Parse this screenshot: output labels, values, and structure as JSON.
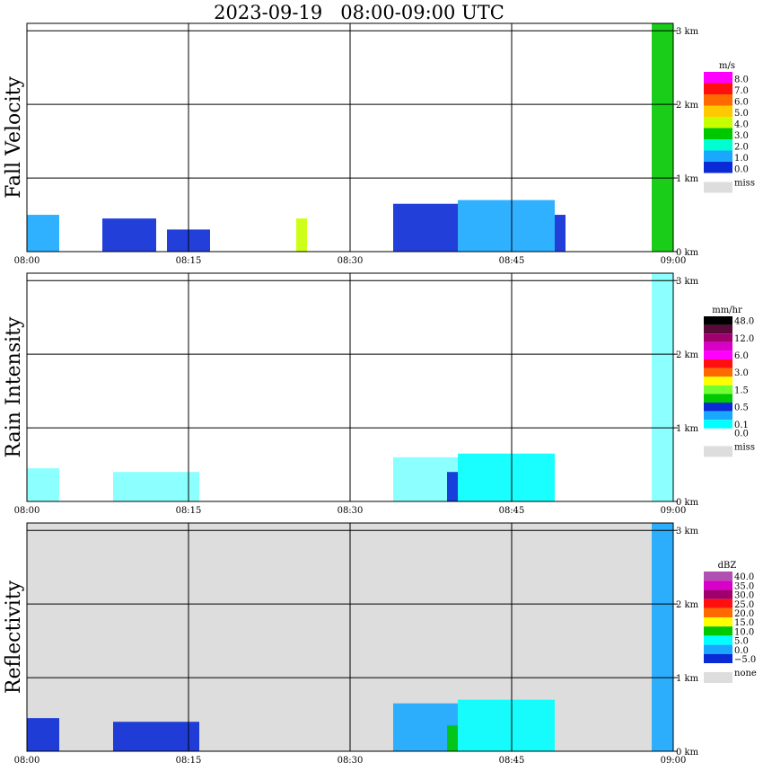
{
  "title": "2023-09-19   08:00-09:00 UTC",
  "time_ticks": [
    "08:00",
    "08:15",
    "08:30",
    "08:45",
    "09:00"
  ],
  "height_ticks": [
    "0 km",
    "1 km",
    "2 km",
    "3 km"
  ],
  "chart_data": [
    {
      "type": "heatmap",
      "title": "Fall Velocity",
      "ylabel": "Fall Velocity",
      "xlim": [
        "08:00",
        "09:00"
      ],
      "ylim_km": [
        0,
        3.1
      ],
      "background": "#ffffff",
      "colorbar": {
        "unit": "m/s",
        "levels": [
          "8.0",
          "7.0",
          "6.0",
          "5.0",
          "4.0",
          "3.0",
          "2.0",
          "1.0",
          "0.0"
        ],
        "colors": [
          "#ff00ff",
          "#ff1010",
          "#ff6a00",
          "#ffc800",
          "#c8ff00",
          "#00c800",
          "#00ffd0",
          "#1aa8ff",
          "#0a2ad6"
        ],
        "missing_label": "miss",
        "missing_color": "#dddddd"
      },
      "echoes": [
        {
          "start": "08:00",
          "end": "08:03",
          "top_km": 0.5,
          "color": "#1aa8ff"
        },
        {
          "start": "08:07",
          "end": "08:12",
          "top_km": 0.45,
          "color": "#0a2ad6"
        },
        {
          "start": "08:13",
          "end": "08:17",
          "top_km": 0.3,
          "color": "#0a2ad6"
        },
        {
          "start": "08:25",
          "end": "08:26",
          "top_km": 0.45,
          "color": "#c8ff00"
        },
        {
          "start": "08:34",
          "end": "08:40",
          "top_km": 0.65,
          "color": "#0a2ad6"
        },
        {
          "start": "08:40",
          "end": "08:49",
          "top_km": 0.7,
          "color": "#1aa8ff"
        },
        {
          "start": "08:49",
          "end": "08:50",
          "top_km": 0.5,
          "color": "#0a2ad6"
        },
        {
          "start": "08:58",
          "end": "09:00",
          "top_km": 3.1,
          "color": "#00c800"
        }
      ]
    },
    {
      "type": "heatmap",
      "title": "Rain Intensity",
      "ylabel": "Rain Intensity",
      "xlim": [
        "08:00",
        "09:00"
      ],
      "ylim_km": [
        0,
        3.1
      ],
      "background": "#ffffff",
      "colorbar": {
        "unit": "mm/hr",
        "levels": [
          "48.0",
          "",
          "12.0",
          "",
          "6.0",
          "",
          "3.0",
          "",
          "1.5",
          "",
          "0.5",
          "",
          "0.1",
          "0.0"
        ],
        "colors": [
          "#000000",
          "#5a0a3a",
          "#a0006e",
          "#d800c8",
          "#ff00ff",
          "#ff1010",
          "#ff6a00",
          "#ffff00",
          "#70ff30",
          "#00c800",
          "#0a2ad6",
          "#1aa8ff",
          "#00ffff",
          "#ffffff"
        ],
        "missing_label": "miss",
        "missing_color": "#dddddd"
      },
      "echoes": [
        {
          "start": "08:00",
          "end": "08:03",
          "top_km": 0.45,
          "color": "#80ffff"
        },
        {
          "start": "08:08",
          "end": "08:16",
          "top_km": 0.4,
          "color": "#80ffff"
        },
        {
          "start": "08:34",
          "end": "08:40",
          "top_km": 0.6,
          "color": "#80ffff"
        },
        {
          "start": "08:39",
          "end": "08:40",
          "top_km": 0.4,
          "color": "#0a2ad6"
        },
        {
          "start": "08:40",
          "end": "08:49",
          "top_km": 0.65,
          "color": "#00ffff"
        },
        {
          "start": "08:58",
          "end": "09:00",
          "top_km": 3.1,
          "color": "#80ffff"
        }
      ]
    },
    {
      "type": "heatmap",
      "title": "Reflectivity",
      "ylabel": "Reflectivity",
      "xlim": [
        "08:00",
        "09:00"
      ],
      "ylim_km": [
        0,
        3.1
      ],
      "background": "#dddddd",
      "colorbar": {
        "unit": "dBZ",
        "levels": [
          "40.0",
          "35.0",
          "30.0",
          "25.0",
          "20.0",
          "15.0",
          "10.0",
          "5.0",
          "0.0",
          "−5.0"
        ],
        "colors": [
          "#b050b0",
          "#d800c8",
          "#a0006e",
          "#ff1010",
          "#ff6a00",
          "#ffff00",
          "#00c800",
          "#00ffff",
          "#1aa8ff",
          "#0a2ad6"
        ],
        "missing_label": "none",
        "missing_color": "#dddddd"
      },
      "echoes": [
        {
          "start": "08:00",
          "end": "08:03",
          "top_km": 0.45,
          "color": "#0a2ad6"
        },
        {
          "start": "08:08",
          "end": "08:16",
          "top_km": 0.4,
          "color": "#0a2ad6"
        },
        {
          "start": "08:34",
          "end": "08:40",
          "top_km": 0.65,
          "color": "#1aa8ff"
        },
        {
          "start": "08:40",
          "end": "08:49",
          "top_km": 0.7,
          "color": "#00ffff"
        },
        {
          "start": "08:39",
          "end": "08:40",
          "top_km": 0.35,
          "color": "#00c800"
        },
        {
          "start": "08:58",
          "end": "09:00",
          "top_km": 3.1,
          "color": "#1aa8ff"
        }
      ]
    }
  ]
}
